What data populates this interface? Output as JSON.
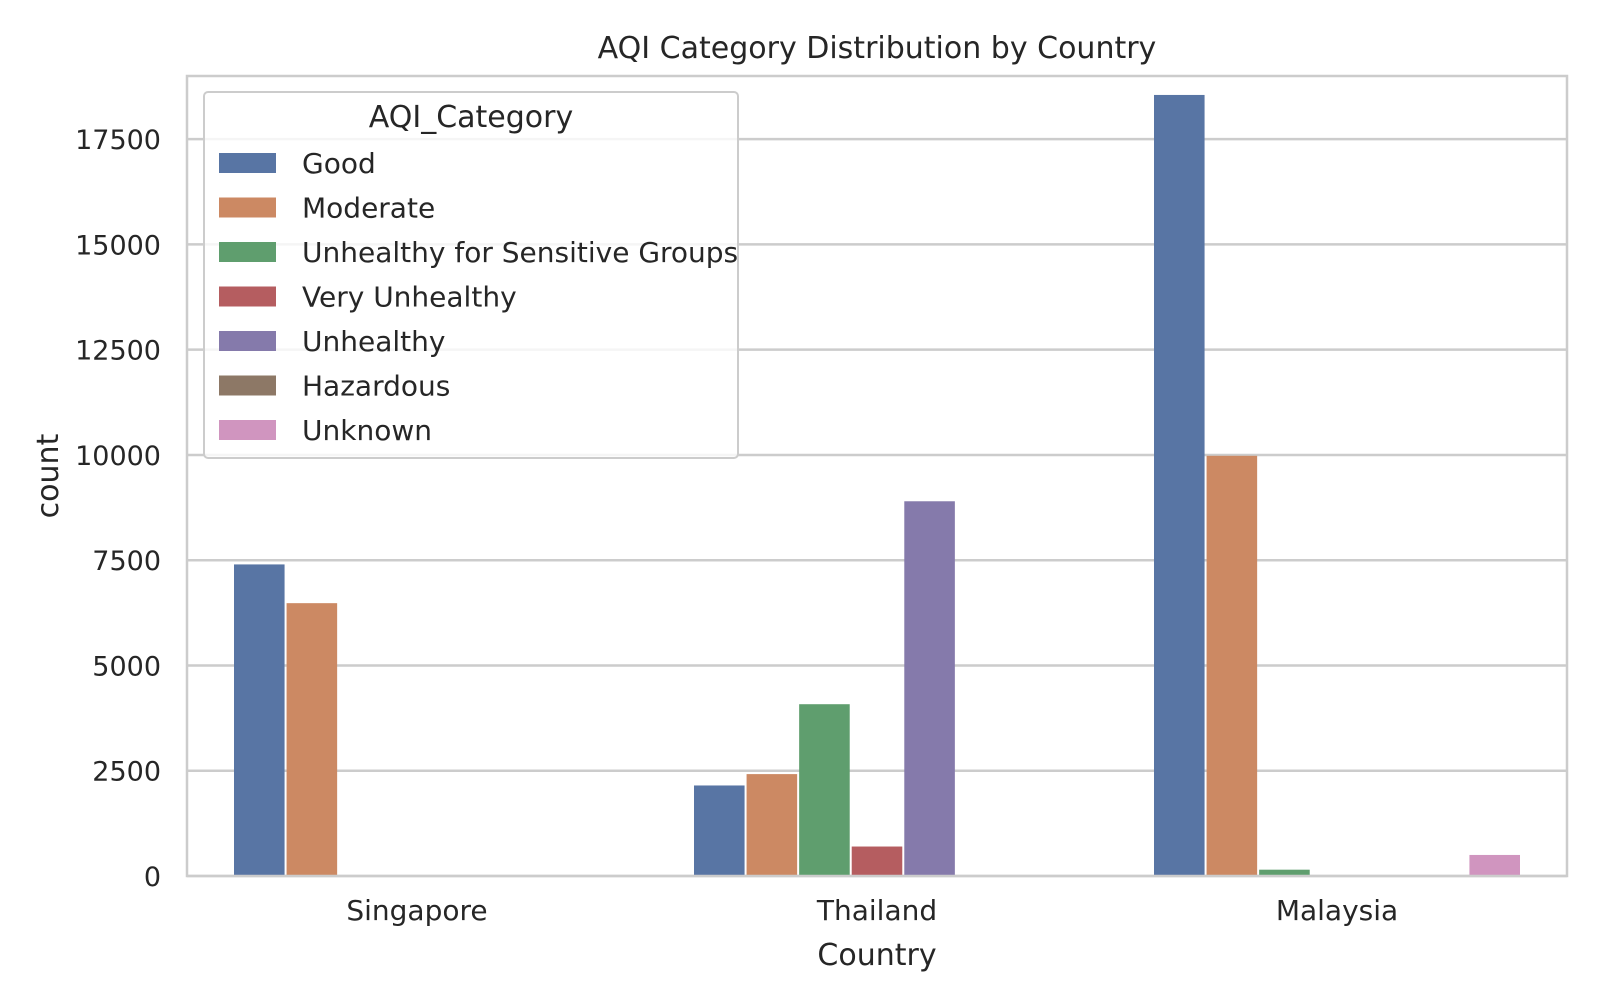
{
  "chart_data": {
    "type": "bar",
    "title": "AQI Category Distribution by Country",
    "xlabel": "Country",
    "ylabel": "count",
    "ylim": [
      0,
      19000
    ],
    "yticks": [
      0,
      2500,
      5000,
      7500,
      10000,
      12500,
      15000,
      17500
    ],
    "grid": true,
    "legend": {
      "title": "AQI_Category",
      "placement": "top-left"
    },
    "categories": [
      "Singapore",
      "Thailand",
      "Malaysia"
    ],
    "series": [
      {
        "name": "Good",
        "color": "#5875a4",
        "values": [
          7400,
          2150,
          18550
        ]
      },
      {
        "name": "Moderate",
        "color": "#cc8963",
        "values": [
          6480,
          2420,
          9980
        ]
      },
      {
        "name": "Unhealthy for Sensitive Groups",
        "color": "#5f9e6e",
        "values": [
          0,
          4080,
          150
        ]
      },
      {
        "name": "Very Unhealthy",
        "color": "#b55d60",
        "values": [
          0,
          700,
          0
        ]
      },
      {
        "name": "Unhealthy",
        "color": "#857aab",
        "values": [
          0,
          8900,
          0
        ]
      },
      {
        "name": "Hazardous",
        "color": "#8d7866",
        "values": [
          0,
          0,
          0
        ]
      },
      {
        "name": "Unknown",
        "color": "#d095bf",
        "values": [
          0,
          0,
          500
        ]
      }
    ]
  }
}
